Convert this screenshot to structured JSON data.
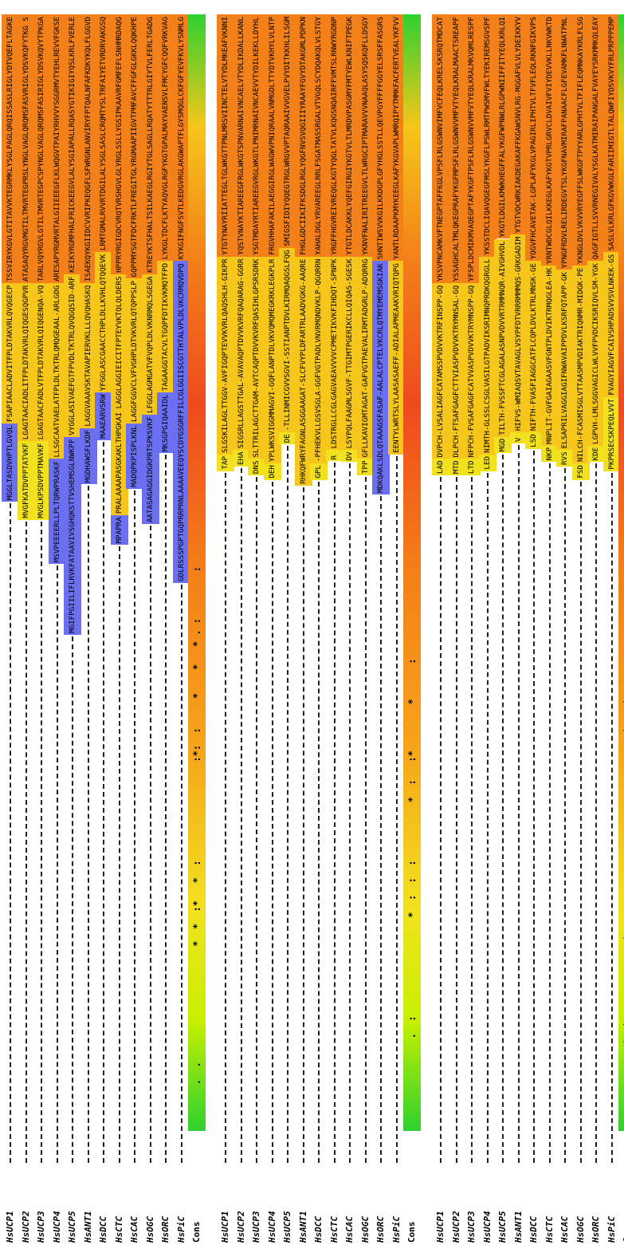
{
  "blocks": [
    {
      "rows": [
        {
          "label": "HsUCP1",
          "segments": [
            {
              "text": "MGGLTASDVHPTLGVQL",
              "color": "#6b6ff2"
            },
            {
              "text": "FSAPIAACLADVITFPLDTAKVRLQVQGECP",
              "color": "#f6c61a"
            },
            {
              "text": "TSSVIRYKGVLGTITAVVKTEGRMKLYSGLPAGLQRQISSASLRIGLYDTVQEFLTAGKE",
              "color": "#f38018"
            }
          ]
        },
        {
          "label": "HsUCP2",
          "segments": [
            {
              "text": "MVGFKATDVPPTATVKF",
              "color": "#f2e11e"
            },
            {
              "text": "LGAGTAACIADLITFPLDTAKVRLQIQGESQGPVR",
              "color": "#f6c61a"
            },
            {
              "text": "ATASAQYRGVMGTILTMVRTEGPRSLYNGLVAGLQRQMSFASVRIGLYDSVKQFYTKG S",
              "color": "#f38018"
            }
          ]
        },
        {
          "label": "HsUCP3",
          "segments": [
            {
              "text": "MVGLKPSDVPPTMAVKF",
              "color": "#f2e11e"
            },
            {
              "text": "LGAGTAACFADLVTFPLDTAKVRLQIQGENQA-VQ",
              "color": "#f6c61a"
            },
            {
              "text": "TARLVQYRGVLGTILTMVRTEGPCSPYNGLVAGLQRQMSFASIRIGLYDSVKQVYTPKGA",
              "color": "#f38018"
            }
          ]
        },
        {
          "label": "HsUCP4",
          "segments": [
            {
              "text": "MSVPEEEERLLPLTQRWPRASKF",
              "color": "#6b6ff2"
            },
            {
              "text": "LLSGCAATVAELATFPLDLTKTRLQMQGEAAL-ARLGDG",
              "color": "#f6c61a"
            },
            {
              "text": "ARESAPYRGMVRTALGIIEEEGFLKLWQGVTPAIYRHVVYSGGRMVTYEHLREVVFGKSE",
              "color": "#f38018"
            }
          ]
        },
        {
          "label": "HsUCP5",
          "segments": [
            {
              "text": "MGIFPGIILIFLRVKFATAAVIVSGHQKSTTVSHEMSGLNWKPF",
              "color": "#6b6ff2"
            },
            {
              "text": "VYGGLASIVAEFGTFPVDLTKTRLQVQGQSID-ARF",
              "color": "#f6c61a"
            },
            {
              "text": "KEIKYRGMFHALFRICKEEGVLALYSGIAPALLRQASYGTIKIGIYQSLKRLFVERLE",
              "color": "#f38018"
            }
          ]
        },
        {
          "label": "HsANT1",
          "segments": [
            {
              "text": "MGDHAWSFLKDF",
              "color": "#6b6ff2"
            },
            {
              "text": "LAGGVAAAVSKTAVAPIERVKLLLQVQHASKQ",
              "color": "#f6c61a"
            },
            {
              "text": "ISAEKQYKGIIDCVVRIPKEQGFLSFWRGNLANVIRYFPTQALNFAFKDKYKQLFLGGVD",
              "color": "#f38018"
            }
          ]
        },
        {
          "label": "HsDCC",
          "segments": [
            {
              "text": "MAAEARVSRW",
              "color": "#6b6ff2"
            },
            {
              "text": "YFGGLASCGAACCTHPLDLLKVHLQTQQEVK",
              "color": "#f6c61a"
            },
            {
              "text": "LRMTGMALRVVRTDGILALYSGLSASLCRQMTYSLTRFAIYETVRDRVAKGSQ",
              "color": "#f38018"
            }
          ]
        },
        {
          "label": "HsCTC",
          "segments": [
            {
              "text": "MPAPRA",
              "color": "#6b6ff2"
            },
            {
              "text": "PRALAAAAPASGKAKLTHPGKAI",
              "color": "#f6c61a"
            },
            {
              "text": "LAGGLAGGIEICITFPTEYVKTQLQLDERS",
              "color": "#f6c61a"
            },
            {
              "text": "HPPRYRGIGDCVRQTVRSHGVLGLYRGLSSLLYGSIPKAAVRFGMFEFLSNHMRDAQG",
              "color": "#f38018"
            }
          ]
        },
        {
          "label": "HsCAC",
          "segments": [
            {
              "text": "MADQPKPISPLKNL",
              "color": "#6b6ff2"
            },
            {
              "text": "LAGGFGGVCLVFVGHPLDTVKVRLQTQPPSLP",
              "color": "#f6c61a"
            },
            {
              "text": "GQPPMYSGTFDCFRKTLFREGITGLYRGMAAPIIGVTPMFAVCFFGFGLGKKLQQKHPE",
              "color": "#f38018"
            }
          ]
        },
        {
          "label": "HsOGC",
          "segments": [
            {
              "text": "AATASAGAGGIDGKPRTSPKSVKF",
              "color": "#6b6ff2"
            },
            {
              "text": "LFGGLAGMGATVFVQPLDLVKNRMQLSGEGA",
              "color": "#f6c61a"
            },
            {
              "text": "KTREYKTSFHALTSILKAEGLRGIYTGLSAGLLRQATYTTTRLGIYTVLFERLTGADG",
              "color": "#f38018"
            }
          ]
        },
        {
          "label": "HsORC",
          "segments": [
            {
              "text": "MKSGPGIQAAIDL",
              "color": "#6b6ff2"
            },
            {
              "text": "TAGAAGGTACVLTGQPFDTIKVKMQTFPD",
              "color": "#f6c61a"
            },
            {
              "text": "LYKGLTDCFLKTYAQVGLRGFYKGTGPALMAYVAENSVLFMCYGFCQQFVRKVAG",
              "color": "#f38018"
            }
          ]
        },
        {
          "label": "HsPiC",
          "segments": [
            {
              "text": "GDLRSSSPGPTGQPRRPRNLAAAAVEEQYSCDYGSGRFFILCGLGGIISCGTTHTALVPLDLVKCRMQVDPQ",
              "color": "#6b6ff2"
            },
            {
              "text": "KYKGIFNGFSVTLKEDGVRGLAKGWAPTFLGYSMQGLCKFGFYEVFKVLYSNMLG",
              "color": "#f38018"
            }
          ]
        }
      ],
      "cons": "        .  .                    *  *  :*   *  :                 :*:  :     *    *   * . :        :"
    },
    {
      "rows": [
        {
          "label": "HsUCP1",
          "segments": [
            {
              "text": "TAP",
              "color": "#f2e11e"
            },
            {
              "text": "SLGSKILAGLTTGGV-AVFIGQPTEVVKVRLQAQSHLH-GIKPR",
              "color": "#f6c61a"
            },
            {
              "text": "YTGTYNAYRIIATTEGLTGLWKGTTPNLMRSVIINCTELVTYDLMKEAFVKNNI",
              "color": "#f38018"
            }
          ]
        },
        {
          "label": "HsUCP2",
          "segments": [
            {
              "text": "EHA",
              "color": "#f2e11e"
            },
            {
              "text": "SIGSRLLAGSTTGAL-AVAVAQPTDVVKVRFQAQARAG-GGRR",
              "color": "#f6c61a"
            },
            {
              "text": "YQSTVNAYKTIAREEGFRGLWKGTSPNVARNAIVNCAELVTYDLIKDALLKANL",
              "color": "#f38018"
            }
          ]
        },
        {
          "label": "HsUCP3",
          "segments": [
            {
              "text": "DNS",
              "color": "#f2e11e"
            },
            {
              "text": "SLTTRILAGCTTGAM-AVTCAQPTDVVKVRFQASIHLGPSRSDRK",
              "color": "#f6c61a"
            },
            {
              "text": "YSGTMDAYRTIAREEGVRGLWKGTLPNIMRNAIVNCAEVVTYDILKEKLLDYHL",
              "color": "#f38018"
            }
          ]
        },
        {
          "label": "HsUCP4",
          "segments": [
            {
              "text": "DEH",
              "color": "#f2e11e"
            },
            {
              "text": "YPLWKSVIGGMMAGVI-GQFLANPTDLVKVQMQMEGKRKLEGKPLR",
              "color": "#f6c61a"
            },
            {
              "text": "FRGVHHAFAKILAEGGIRGLWAGWVPNIQRAALVNMGDLTTYDTVKHYLVLNTP",
              "color": "#f38018"
            }
          ]
        },
        {
          "label": "HsUCP5",
          "segments": [
            {
              "text": "DE",
              "color": "#f2e11e"
            },
            {
              "text": "-TLLINMICGVVSGVI-SSTIANPTDVLKIRMQAQGSLFQG",
              "color": "#f6c61a"
            },
            {
              "text": "SMIGSFIDIYQQEGTRGLWRGVVPTAQRAAIVVGVELPVYDITKKHLILSGM",
              "color": "#f38018"
            }
          ]
        },
        {
          "label": "HsANT1",
          "segments": [
            {
              "text": "RHKQFWRYFAGNLASGGAAGAT-SLCFVYPLDFARTRLAADVGKG-AAQRE",
              "color": "#f6c61a"
            },
            {
              "text": "FHGLGDCIIKIFKSDGLRGLYQGFNVSVQGIIIYRAAYFGVYDTAKGMLPDPKN",
              "color": "#f38018"
            }
          ]
        },
        {
          "label": "HsDCC",
          "segments": [
            {
              "text": "GPL",
              "color": "#f2e11e"
            },
            {
              "text": "-PFHEKVLLGSVSGLA-GGFVGTPADLVNVRMQNDVKLP-QGQRRN",
              "color": "#f6c61a"
            },
            {
              "text": "YAHALDGLYRVAREEGLRRLFSGATMASSRGALVTVGQLSCYDQAKQLVLSTGY",
              "color": "#f38018"
            }
          ]
        },
        {
          "label": "HsCTC",
          "segments": [
            {
              "text": "R",
              "color": "#f2e11e"
            },
            {
              "text": "LDSTRGLLCGLGAGVAEAVVVVCPMETIKVKFIHDQT-SPNPK",
              "color": "#f6c61a"
            },
            {
              "text": "YRGFFHGVREIVREQGLKGTYQGLTATVLKQGSNQAIRFFVMTSLRNWYRGDNP",
              "color": "#f38018"
            }
          ]
        },
        {
          "label": "HsCAC",
          "segments": [
            {
              "text": "DV",
              "color": "#f2e11e"
            },
            {
              "text": "LSYPQLFAAGMLSGVF-TTGIMTPGERIKCLLQIQAS-SGESK",
              "color": "#f6c61a"
            },
            {
              "text": "YTGTLDCAKKLYQEFGIRGIYKGTVLTLMRDVPASGMYFMTYEWLKNIFTPEGK",
              "color": "#f38018"
            }
          ]
        },
        {
          "label": "HsOGC",
          "segments": [
            {
              "text": "TPP",
              "color": "#f2e11e"
            },
            {
              "text": "GFLLKAVIGMTAGAT-GAFVGTPAEVALIRMTADGRLP-ADQRRG",
              "color": "#f6c61a"
            },
            {
              "text": "YKNVFNALIRITREEGVLTLWRGCIPTMARAVVVNAAQLASYSQSKQFLLDSGY",
              "color": "#f38018"
            }
          ]
        },
        {
          "label": "HsORC",
          "segments": [
            {
              "text": "MDKQAKLSDLQTAAAGSFASAF-AALALCPTELVKCRLQTMYEMEMSGKIAK",
              "color": "#6b6ff2"
            },
            {
              "text": "SHNTIWSVVKGILKKDGPLGFYHGLSSTLLQEVPGYFFFFGGYELSRSFFASGRS",
              "color": "#f38018"
            }
          ]
        },
        {
          "label": "HsPiC",
          "segments": [
            {
              "text": "EENTYLWRTSLYLAASASAEFF-ADIALAPMEAAKVRIQTQPG",
              "color": "#f6c61a"
            },
            {
              "text": "YANTLRDAAPKMYKEEGLKAFYKGVAPLWMRQIPYTMMKFACFERTVEALYKFVV",
              "color": "#f38018"
            }
          ]
        }
      ],
      "cons": "                .  :                 *  :  :  :          *  :   :*        *      :"
    },
    {
      "rows": [
        {
          "label": "HsUCP1",
          "segments": [
            {
              "text": "LAD",
              "color": "#f2e11e"
            },
            {
              "text": "DVPCH-LVSALIAGFCATAMSSPVDVVKTRFINSPP-GQ",
              "color": "#f6c61a"
            },
            {
              "text": "YKSVPNCAMKVFTNEGPTAFFKGLVPSFLRLGSWNVIMFVCFEQLKRELSKSRQTMDCAT",
              "color": "#f38018"
            }
          ]
        },
        {
          "label": "HsUCP2",
          "segments": [
            {
              "text": "MTD",
              "color": "#f2e11e"
            },
            {
              "text": "DLPCH-FTSAFGAGFCTTVIASPVDVVKTRYMNSAL-GQ",
              "color": "#f6c61a"
            },
            {
              "text": "YSSAGHCALTMLQKEGPRAFYKGFMPSFLRLGSWNVVMFVTYEQLKRALMAACTSREAPF",
              "color": "#f38018"
            }
          ]
        },
        {
          "label": "HsUCP3",
          "segments": [
            {
              "text": "LTD",
              "color": "#f2e11e"
            },
            {
              "text": "NFPCH-FVSAFGAGFCATVVASPVDVVKTRYMNSPP-GQ",
              "color": "#f6c61a"
            },
            {
              "text": "YFSPLDCMIKMVAQEGPTAFYKGFTPSFLRLGSWNVVMFVTYEQLKRALMKVQMLRESPF",
              "color": "#f38018"
            }
          ]
        },
        {
          "label": "HsUCP4",
          "segments": [
            {
              "text": "LED",
              "color": "#f2e11e"
            },
            {
              "text": "NIMTH-GLSSLCSGLVASILGTPADVIKSRIMNQPRDKQGRGLL",
              "color": "#f6c61a"
            },
            {
              "text": "YKSSTDCLIQAVQGEGFMSLYKGFLPSWLRMTPWSMVFWLTYEKIREMSGVSPF",
              "color": "#f38018"
            }
          ]
        },
        {
          "label": "HsUCP5",
          "segments": [
            {
              "text": "MGD",
              "color": "#f2e11e"
            },
            {
              "text": "TILTH-FVSSFTCGLAGALASNPVDVVRTRMMNQR-AIVGHVDL",
              "color": "#f6c61a"
            },
            {
              "text": "YKGTLDGILKMWKHEGFFALYKGFWPNWLRLGPWNIIFFITYEQLKRLQI",
              "color": "#f38018"
            }
          ]
        },
        {
          "label": "HsANT1",
          "segments": [
            {
              "text": "V",
              "color": "#f2e11e"
            },
            {
              "text": "HIFVS-WMIAQSVTAVAGLVSYPFDTVRRRMMMQS-GRKGADIM",
              "color": "#f6c61a"
            },
            {
              "text": "YTGTVDCWRKIAKDEGAKAFFKGAWSNVLRG-MGGAFVLVLYDEIKKYV",
              "color": "#f38018"
            }
          ]
        },
        {
          "label": "HsDCC",
          "segments": [
            {
              "text": "LSD",
              "color": "#f2e11e"
            },
            {
              "text": "NIFTH-FVASFIAGGCATFLCQPLDVLKTRLMNSK-GE",
              "color": "#f6c61a"
            },
            {
              "text": "YQGVFHCAVETAK-LGPLAFYKGLVPAGIRLIPHTVLTFVFLEQLRKNFGIKVPS",
              "color": "#f38018"
            }
          ]
        },
        {
          "label": "HsCTC",
          "segments": [
            {
              "text": "NKP",
              "color": "#f2e11e"
            },
            {
              "text": "MNPLIT-GVFGAIAGAASVFGNTPLDVIKTRMQGLEA-HK",
              "color": "#f6c61a"
            },
            {
              "text": "YRNTWDCGLQILKKEGLKAFYKGTVPRLGRVCLDVAIVFVIYDEVVKLLNKVWKTD",
              "color": "#f38018"
            }
          ]
        },
        {
          "label": "HsCAC",
          "segments": [
            {
              "text": "RVS",
              "color": "#f2e11e"
            },
            {
              "text": "ELSAPRILVAGGIAGIFNWAVAIPPDVLKSRFQTAPP-GK",
              "color": "#f6c61a"
            },
            {
              "text": "YPNGFRDVLRELIRDEGVTSLYKGFNAVMIRAFPANAACFLGFEVAMKFLNWATPNL",
              "color": "#f38018"
            }
          ]
        },
        {
          "label": "HsOGC",
          "segments": [
            {
              "text": "FSD",
              "color": "#f2e11e"
            },
            {
              "text": "NILCH-FCASMISGLVTTAASMPVDIAKTRIQNMR-MIDGK-PE",
              "color": "#f6c61a"
            },
            {
              "text": "YKNGLDVLVKVVRYEGFFSLWKGFTPYYARLGPHTVLTFIFLEQMNKAYKRLFLSG",
              "color": "#f38018"
            }
          ]
        },
        {
          "label": "HsORC",
          "segments": [
            {
              "text": "KDE",
              "color": "#f2e11e"
            },
            {
              "text": "LGPVH-LMLSGGVAGICLWLVVFPVDCIKSRIQVLSM-YGK",
              "color": "#f6c61a"
            },
            {
              "text": "QAGFIGTLLSVVRNEGIVALYSGLKATMIRAIPANGALFVAYEYSRKMMKQLEAY",
              "color": "#f38018"
            }
          ]
        },
        {
          "label": "HsPiC",
          "segments": [
            {
              "text": "PKPRSECSKPEQLVVT",
              "color": "#f2e11e"
            },
            {
              "text": "FVAGYIAGVFCAIVSHPADSVVSVLNKEK-GS",
              "color": "#f6c61a"
            },
            {
              "text": "SASLVLKRLGFKGVWKGLFARIIMIGTLTALQWFIYDSVKVYFRLPRPPPEMP",
              "color": "#f38018"
            }
          ]
        }
      ],
      "cons": "            .  *  *  :           *  :         :            :      .  *    *  .  :"
    }
  ]
}
